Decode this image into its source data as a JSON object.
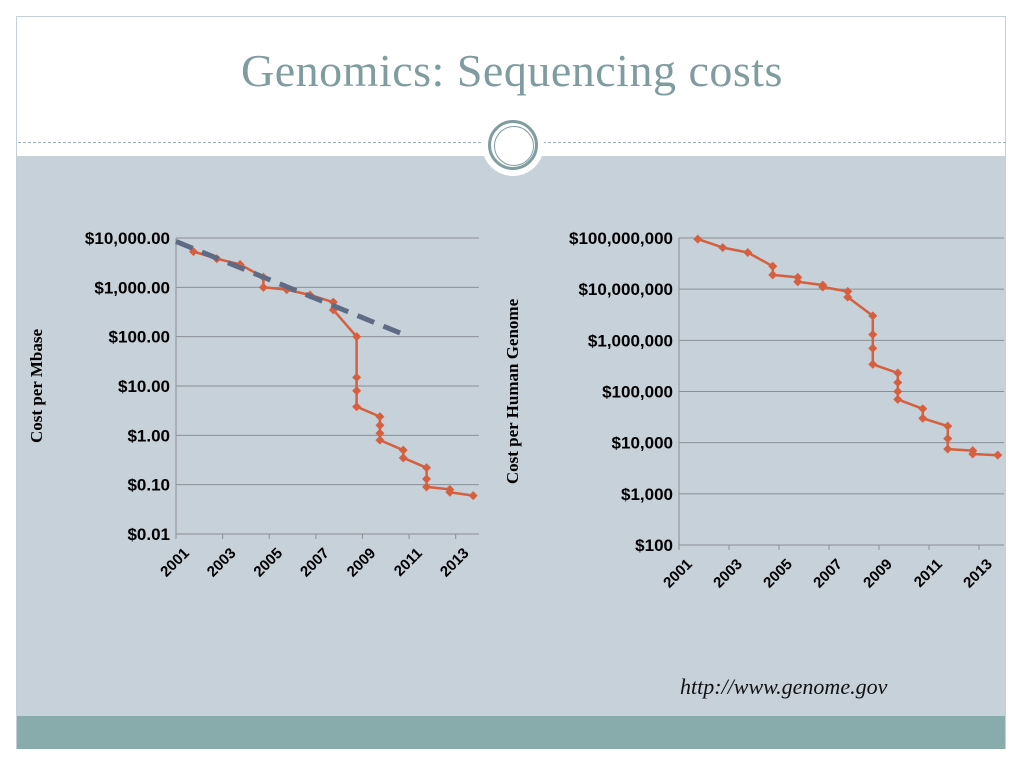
{
  "slide": {
    "title": "Genomics: Sequencing costs",
    "source": "http://www.genome.gov",
    "colors": {
      "title": "#7f9c9f",
      "panel": "#c6d1d9",
      "footer": "#88abab",
      "series": "#d4603f",
      "trend": "#5e6b83"
    }
  },
  "chart_data": [
    {
      "type": "line",
      "title": "",
      "xlabel": "",
      "ylabel": "Cost per Mbase",
      "y_scale": "log",
      "ylim": [
        0.01,
        10000
      ],
      "y_ticks": [
        "$10,000.00",
        "$1,000.00",
        "$100.00",
        "$10.00",
        "$1.00",
        "$0.10",
        "$0.01"
      ],
      "y_tick_values": [
        10000,
        1000,
        100,
        10,
        1,
        0.1,
        0.01
      ],
      "x_ticks": [
        "2001",
        "2003",
        "2005",
        "2007",
        "2009",
        "2011",
        "2013"
      ],
      "x_tick_values": [
        2001,
        2003,
        2005,
        2007,
        2009,
        2011,
        2013
      ],
      "xlim": [
        2001,
        2014
      ],
      "grid": true,
      "series": [
        {
          "x": [
            2001.75,
            2002.75,
            2003.75,
            2004.75,
            2004.75,
            2005.75,
            2006.75,
            2007.75,
            2007.75,
            2008.75,
            2008.75,
            2008.75,
            2008.75,
            2009.75,
            2009.75,
            2009.75,
            2009.75,
            2010.75,
            2010.75,
            2011.75,
            2011.75,
            2011.75,
            2012.75,
            2012.75,
            2013.75
          ],
          "y": [
            5300,
            3800,
            2900,
            1600,
            1000,
            900,
            700,
            500,
            350,
            100,
            15,
            8,
            3.8,
            2.4,
            1.6,
            1.1,
            0.8,
            0.5,
            0.35,
            0.22,
            0.13,
            0.09,
            0.08,
            0.07,
            0.06
          ]
        }
      ],
      "trend": {
        "style": "dashed",
        "x": [
          2001,
          2011
        ],
        "y": [
          8500,
          100
        ]
      }
    },
    {
      "type": "line",
      "title": "",
      "xlabel": "",
      "ylabel": "Cost per Human Genome",
      "y_scale": "log",
      "ylim": [
        100,
        100000000
      ],
      "y_ticks": [
        "$100,000,000",
        "$10,000,000",
        "$1,000,000",
        "$100,000",
        "$10,000",
        "$1,000",
        "$100"
      ],
      "y_tick_values": [
        100000000,
        10000000,
        1000000,
        100000,
        10000,
        1000,
        100
      ],
      "x_ticks": [
        "2001",
        "2003",
        "2005",
        "2007",
        "2009",
        "2011",
        "2013"
      ],
      "x_tick_values": [
        2001,
        2003,
        2005,
        2007,
        2009,
        2011,
        2013
      ],
      "xlim": [
        2001,
        2014
      ],
      "grid": true,
      "series": [
        {
          "x": [
            2001.75,
            2002.75,
            2003.75,
            2004.75,
            2004.75,
            2005.75,
            2005.75,
            2006.75,
            2006.75,
            2007.75,
            2007.75,
            2008.75,
            2008.75,
            2008.75,
            2008.75,
            2009.75,
            2009.75,
            2009.75,
            2009.75,
            2010.75,
            2010.75,
            2011.75,
            2011.75,
            2011.75,
            2012.75,
            2012.75,
            2013.75
          ],
          "y": [
            95000000,
            65000000,
            52000000,
            28000000,
            19000000,
            17000000,
            14000000,
            12000000,
            11000000,
            9000000,
            7000000,
            3000000,
            1300000,
            700000,
            340000,
            230000,
            150000,
            100000,
            70000,
            46000,
            30000,
            21000,
            12000,
            7500,
            7000,
            6000,
            5700
          ]
        }
      ]
    }
  ]
}
